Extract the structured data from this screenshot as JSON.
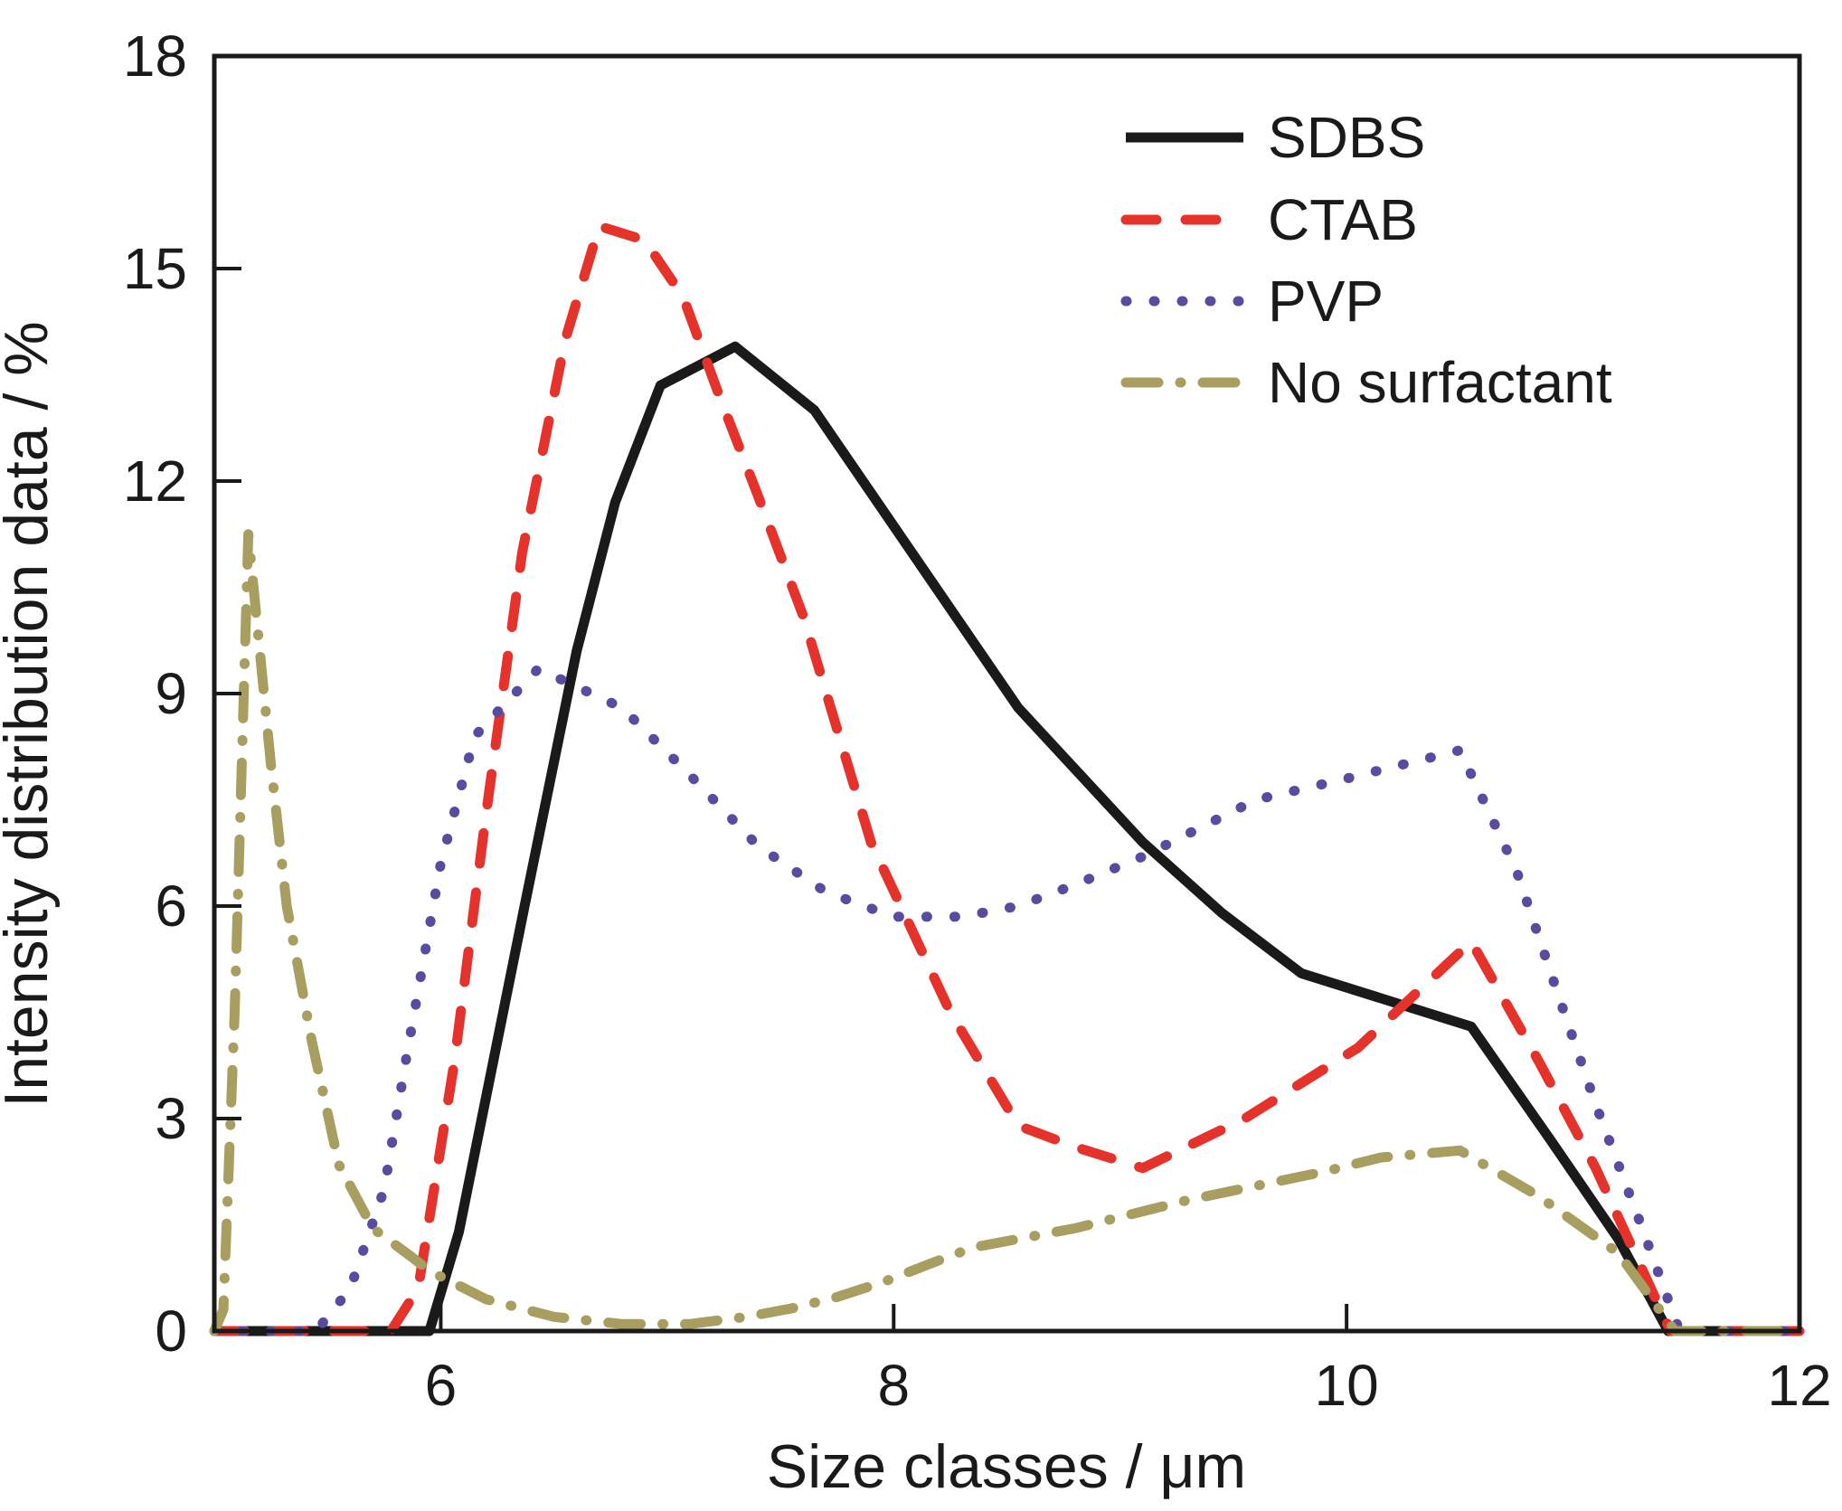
{
  "figure": {
    "background": "#ffffff",
    "axis_color": "#1a1a1a"
  },
  "chart_data": {
    "type": "line",
    "title": "",
    "xlabel": "Size classes / μm",
    "ylabel": "Intensity distribution data / %",
    "xlim": [
      5,
      12
    ],
    "ylim": [
      0,
      18
    ],
    "x_ticks": [
      6,
      8,
      10,
      12
    ],
    "y_ticks": [
      0,
      3,
      6,
      9,
      12,
      15,
      18
    ],
    "grid": false,
    "legend_position": "top-right",
    "series": [
      {
        "name": "SDBS",
        "color": "#1a1a1a",
        "style": "solid",
        "points": [
          [
            5.0,
            0
          ],
          [
            5.95,
            0
          ],
          [
            6.08,
            1.4
          ],
          [
            6.37,
            6.0
          ],
          [
            6.6,
            9.6
          ],
          [
            6.77,
            11.7
          ],
          [
            6.97,
            13.35
          ],
          [
            7.3,
            13.9
          ],
          [
            7.65,
            13.0
          ],
          [
            8.1,
            10.9
          ],
          [
            8.55,
            8.8
          ],
          [
            9.1,
            6.9
          ],
          [
            9.45,
            5.9
          ],
          [
            9.8,
            5.05
          ],
          [
            10.25,
            4.6
          ],
          [
            10.55,
            4.3
          ],
          [
            10.9,
            2.7
          ],
          [
            11.2,
            1.3
          ],
          [
            11.42,
            0
          ],
          [
            12.0,
            0
          ]
        ]
      },
      {
        "name": "CTAB",
        "color": "#e5332b",
        "style": "dashed",
        "points": [
          [
            5.0,
            0
          ],
          [
            5.78,
            0
          ],
          [
            5.9,
            0.6
          ],
          [
            6.06,
            3.8
          ],
          [
            6.2,
            7.3
          ],
          [
            6.36,
            11.0
          ],
          [
            6.55,
            14.0
          ],
          [
            6.7,
            15.6
          ],
          [
            6.9,
            15.4
          ],
          [
            7.07,
            14.6
          ],
          [
            7.23,
            13.2
          ],
          [
            7.4,
            11.8
          ],
          [
            7.6,
            10.1
          ],
          [
            7.9,
            6.9
          ],
          [
            8.25,
            4.5
          ],
          [
            8.55,
            2.9
          ],
          [
            8.8,
            2.6
          ],
          [
            9.1,
            2.3
          ],
          [
            9.55,
            3.0
          ],
          [
            10.05,
            4.0
          ],
          [
            10.55,
            5.5
          ],
          [
            10.85,
            3.8
          ],
          [
            11.1,
            2.3
          ],
          [
            11.43,
            0
          ],
          [
            12.0,
            0
          ]
        ]
      },
      {
        "name": "PVP",
        "color": "#564da0",
        "style": "dotted",
        "points": [
          [
            5.0,
            0
          ],
          [
            5.45,
            0
          ],
          [
            5.6,
            0.6
          ],
          [
            5.75,
            2.0
          ],
          [
            5.85,
            3.9
          ],
          [
            6.0,
            6.6
          ],
          [
            6.15,
            8.4
          ],
          [
            6.43,
            9.35
          ],
          [
            6.8,
            8.8
          ],
          [
            7.1,
            7.85
          ],
          [
            7.4,
            6.85
          ],
          [
            7.7,
            6.2
          ],
          [
            8.0,
            5.85
          ],
          [
            8.3,
            5.85
          ],
          [
            8.55,
            6.0
          ],
          [
            8.8,
            6.3
          ],
          [
            9.1,
            6.7
          ],
          [
            9.35,
            7.1
          ],
          [
            9.6,
            7.5
          ],
          [
            10.0,
            7.8
          ],
          [
            10.5,
            8.2
          ],
          [
            10.75,
            6.5
          ],
          [
            10.95,
            4.6
          ],
          [
            11.1,
            3.2
          ],
          [
            11.3,
            1.5
          ],
          [
            11.47,
            0
          ],
          [
            12.0,
            0
          ]
        ]
      },
      {
        "name": "No surfactant",
        "color": "#a79e5f",
        "style": "dashdot",
        "points": [
          [
            5.0,
            0
          ],
          [
            5.04,
            0.3
          ],
          [
            5.09,
            4.5
          ],
          [
            5.15,
            11.25
          ],
          [
            5.25,
            8.0
          ],
          [
            5.32,
            6.0
          ],
          [
            5.43,
            4.1
          ],
          [
            5.55,
            2.35
          ],
          [
            5.7,
            1.45
          ],
          [
            5.87,
            1.05
          ],
          [
            5.95,
            0.85
          ],
          [
            6.2,
            0.45
          ],
          [
            6.5,
            0.2
          ],
          [
            6.8,
            0.1
          ],
          [
            7.1,
            0.1
          ],
          [
            7.35,
            0.2
          ],
          [
            7.55,
            0.32
          ],
          [
            7.75,
            0.48
          ],
          [
            7.96,
            0.7
          ],
          [
            8.16,
            0.95
          ],
          [
            8.35,
            1.18
          ],
          [
            8.8,
            1.45
          ],
          [
            9.3,
            1.85
          ],
          [
            9.9,
            2.25
          ],
          [
            10.15,
            2.45
          ],
          [
            10.5,
            2.55
          ],
          [
            10.85,
            1.9
          ],
          [
            11.2,
            1.1
          ],
          [
            11.45,
            0
          ],
          [
            12.0,
            0
          ]
        ]
      }
    ]
  }
}
